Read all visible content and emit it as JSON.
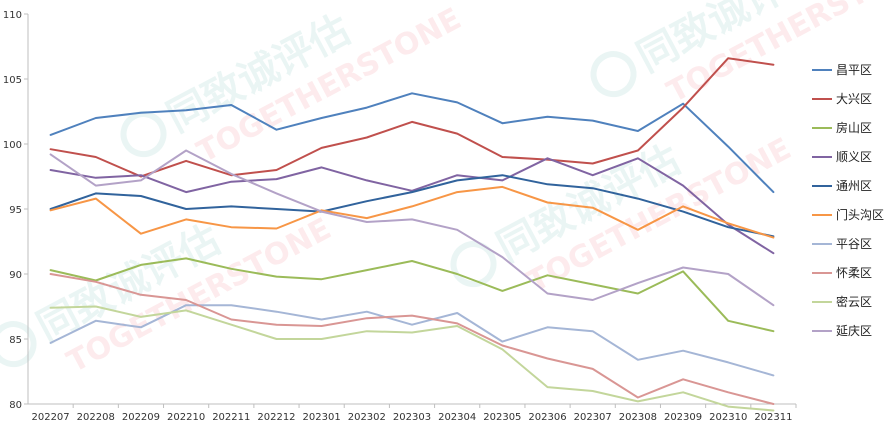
{
  "chart_data": {
    "type": "line",
    "title": "",
    "xlabel": "",
    "ylabel": "",
    "ylim": [
      80,
      110
    ],
    "yticks": [
      80,
      85,
      90,
      95,
      100,
      105,
      110
    ],
    "grid": false,
    "legend_position": "right",
    "x": [
      "202207",
      "202208",
      "202209",
      "202210",
      "202211",
      "202212",
      "202301",
      "202302",
      "202303",
      "202304",
      "202305",
      "202306",
      "202307",
      "202308",
      "202309",
      "202310",
      "202311"
    ],
    "series": [
      {
        "name": "昌平区",
        "color": "#4f81bd",
        "values": [
          100.7,
          102.0,
          102.4,
          102.6,
          103.0,
          101.1,
          102.0,
          102.8,
          103.9,
          103.2,
          101.6,
          102.1,
          101.8,
          101.0,
          103.1,
          99.8,
          96.3
        ]
      },
      {
        "name": "大兴区",
        "color": "#c0504d",
        "values": [
          99.6,
          99.0,
          97.5,
          98.7,
          97.6,
          98.0,
          99.7,
          100.5,
          101.7,
          100.8,
          99.0,
          98.8,
          98.5,
          99.5,
          102.8,
          106.6,
          106.1
        ]
      },
      {
        "name": "房山区",
        "color": "#9bbb59",
        "values": [
          90.3,
          89.5,
          90.7,
          91.2,
          90.4,
          89.8,
          89.6,
          90.3,
          91.0,
          90.0,
          88.7,
          89.9,
          89.2,
          88.5,
          90.2,
          86.4,
          85.6
        ]
      },
      {
        "name": "顺义区",
        "color": "#8064a2",
        "values": [
          98.0,
          97.4,
          97.6,
          96.3,
          97.1,
          97.3,
          98.2,
          97.2,
          96.4,
          97.6,
          97.2,
          98.9,
          97.6,
          98.9,
          96.8,
          93.8,
          91.6
        ]
      },
      {
        "name": "通州区",
        "color": "#31639c",
        "values": [
          95.0,
          96.2,
          96.0,
          95.0,
          95.2,
          95.0,
          94.8,
          95.6,
          96.3,
          97.2,
          97.6,
          96.9,
          96.6,
          95.8,
          94.8,
          93.6,
          92.9
        ]
      },
      {
        "name": "门头沟区",
        "color": "#f79646",
        "values": [
          94.9,
          95.8,
          93.1,
          94.2,
          93.6,
          93.5,
          94.9,
          94.3,
          95.2,
          96.3,
          96.7,
          95.5,
          95.1,
          93.4,
          95.2,
          93.9,
          92.8
        ]
      },
      {
        "name": "平谷区",
        "color": "#a5b6d6",
        "values": [
          84.7,
          86.4,
          85.9,
          87.6,
          87.6,
          87.1,
          86.5,
          87.1,
          86.1,
          87.0,
          84.8,
          85.9,
          85.6,
          83.4,
          84.1,
          83.2,
          82.2
        ]
      },
      {
        "name": "怀柔区",
        "color": "#d99694",
        "values": [
          90.0,
          89.4,
          88.4,
          88.0,
          86.5,
          86.1,
          86.0,
          86.6,
          86.8,
          86.2,
          84.5,
          83.5,
          82.7,
          80.5,
          81.9,
          80.9,
          80.0
        ]
      },
      {
        "name": "密云区",
        "color": "#c3d69b",
        "values": [
          87.4,
          87.5,
          86.7,
          87.2,
          86.1,
          85.0,
          85.0,
          85.6,
          85.5,
          86.0,
          84.2,
          81.3,
          81.0,
          80.2,
          80.9,
          79.8,
          79.5
        ]
      },
      {
        "name": "延庆区",
        "color": "#b3a2c7",
        "values": [
          99.2,
          96.8,
          97.2,
          99.5,
          97.7,
          96.2,
          94.8,
          94.0,
          94.2,
          93.4,
          91.3,
          88.5,
          88.0,
          89.3,
          90.5,
          90.0,
          87.6
        ]
      }
    ]
  }
}
